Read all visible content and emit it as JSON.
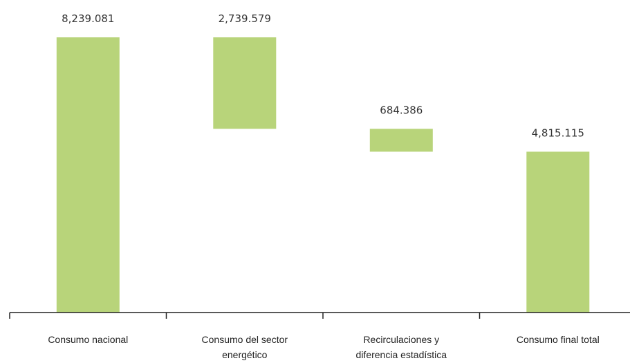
{
  "chart_data": {
    "type": "bar",
    "subtype": "waterfall",
    "title": "",
    "xlabel": "",
    "ylabel": "",
    "categories": [
      [
        "Consumo nacional"
      ],
      [
        "Consumo del sector",
        "energético"
      ],
      [
        "Recirculaciones y",
        "diferencia estadística"
      ],
      [
        "Consumo final total"
      ]
    ],
    "bars": [
      {
        "base": 0,
        "top": 8239.081,
        "label": "8,239.081"
      },
      {
        "base": 5499.502,
        "top": 8239.081,
        "label": "2,739.579"
      },
      {
        "base": 4815.116,
        "top": 5499.502,
        "label": "684.386"
      },
      {
        "base": 0,
        "top": 4815.115,
        "label": "4,815.115"
      }
    ],
    "ylim": [
      0,
      8239.081
    ],
    "grid": false,
    "legend": "none",
    "bar_color": "#b8d47a",
    "axis_color": "#222222"
  }
}
